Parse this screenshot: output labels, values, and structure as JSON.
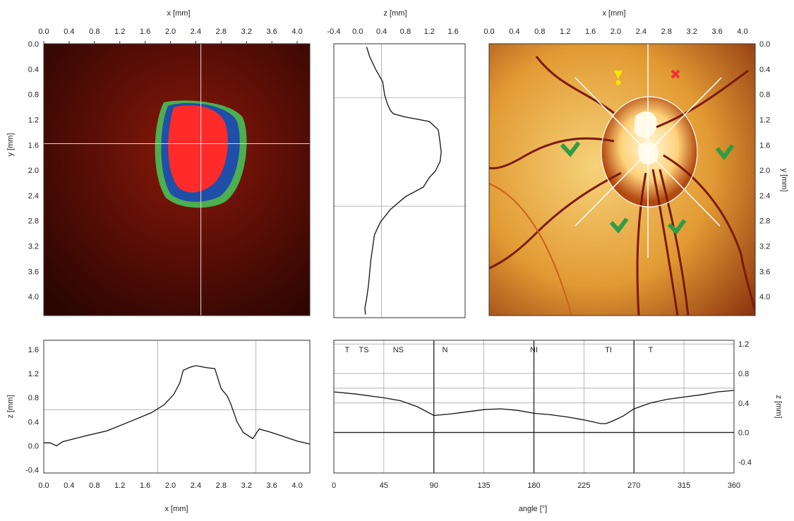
{
  "chart_data": [
    {
      "id": "topview",
      "type": "heatmap",
      "xlabel": "x [mm]",
      "ylabel": "y [mm]",
      "xticks": [
        "0.0",
        "0.4",
        "0.8",
        "1.2",
        "1.6",
        "2.0",
        "2.4",
        "2.8",
        "3.2",
        "3.6",
        "4.0"
      ],
      "yticks": [
        "0.0",
        "0.4",
        "0.8",
        "1.2",
        "1.6",
        "2.0",
        "2.4",
        "2.8",
        "3.2",
        "3.6",
        "4.0"
      ],
      "xlim": [
        0,
        4.2
      ],
      "ylim": [
        0,
        4.3
      ],
      "crosshair": {
        "x": 2.48,
        "y": 1.58
      },
      "regions": [
        {
          "name": "rim",
          "color": "#4caf50"
        },
        {
          "name": "transition",
          "color": "#1f4fa8"
        },
        {
          "name": "cup",
          "color": "#ff2a2a"
        }
      ],
      "background_color": "#6b1208"
    },
    {
      "id": "depth_vertical",
      "type": "line",
      "xlabel": "z [mm]",
      "xticks": [
        "-0.4",
        "0.0",
        "0.4",
        "0.8",
        "1.2",
        "1.6"
      ],
      "xlim": [
        -0.4,
        1.8
      ],
      "ylim": [
        0,
        4.3
      ],
      "hlines": [
        0.85,
        2.55
      ],
      "series": [
        {
          "x": [
            0.15,
            0.2,
            0.3,
            0.42,
            0.45,
            0.5,
            0.55,
            0.6,
            0.8,
            1.2,
            1.35,
            1.38,
            1.4,
            1.38,
            1.3,
            1.2,
            1.1,
            0.8,
            0.55,
            0.38,
            0.28,
            0.25,
            0.22,
            0.2,
            0.18,
            0.15,
            0.12,
            0.13
          ],
          "y": [
            0.05,
            0.2,
            0.4,
            0.6,
            0.8,
            0.95,
            1.05,
            1.1,
            1.15,
            1.22,
            1.35,
            1.55,
            1.7,
            1.85,
            2.0,
            2.1,
            2.25,
            2.4,
            2.6,
            2.8,
            3.0,
            3.2,
            3.4,
            3.6,
            3.8,
            4.0,
            4.15,
            4.25
          ]
        }
      ]
    },
    {
      "id": "fundus",
      "type": "heatmap",
      "xlabel": "x [mm]",
      "ylabel": "y [mm]",
      "xticks": [
        "0.0",
        "0.4",
        "0.8",
        "1.2",
        "1.6",
        "2.0",
        "2.4",
        "2.8",
        "3.2",
        "3.6",
        "4.0"
      ],
      "yticks": [
        "0.0",
        "0.4",
        "0.8",
        "1.2",
        "1.6",
        "2.0",
        "2.4",
        "2.8",
        "3.2",
        "3.6",
        "4.0"
      ],
      "xlim": [
        0,
        4.2
      ],
      "ylim": [
        0,
        4.3
      ],
      "colors": {
        "background": "#e8a23a",
        "vessel": "#7a1a08",
        "disc": "#fff3c8"
      }
    },
    {
      "id": "depth_horizontal",
      "type": "line",
      "xlabel": "x [mm]",
      "ylabel": "z [mm]",
      "xticks": [
        "0.0",
        "0.4",
        "0.8",
        "1.2",
        "1.6",
        "2.0",
        "2.4",
        "2.8",
        "3.2",
        "3.6",
        "4.0"
      ],
      "yticks": [
        "-0.4",
        "0.0",
        "0.4",
        "0.8",
        "1.2",
        "1.6"
      ],
      "xlim": [
        0,
        4.2
      ],
      "ylim": [
        1.75,
        -0.45
      ],
      "vlines": [
        1.8,
        3.35
      ],
      "series": [
        {
          "x": [
            0.0,
            0.1,
            0.2,
            0.3,
            0.6,
            1.0,
            1.4,
            1.7,
            1.9,
            2.05,
            2.15,
            2.2,
            2.3,
            2.4,
            2.55,
            2.7,
            2.8,
            2.9,
            2.95,
            3.05,
            3.15,
            3.3,
            3.4,
            3.6,
            3.8,
            4.0,
            4.2
          ],
          "y": [
            0.05,
            0.05,
            0.0,
            0.07,
            0.15,
            0.25,
            0.42,
            0.55,
            0.68,
            0.85,
            1.05,
            1.25,
            1.3,
            1.33,
            1.3,
            1.28,
            0.95,
            0.82,
            0.7,
            0.4,
            0.22,
            0.12,
            0.28,
            0.22,
            0.15,
            0.08,
            0.03
          ]
        }
      ]
    },
    {
      "id": "angular_profile",
      "type": "line",
      "xlabel": "angle [°]",
      "ylabel": "z [mm]",
      "xticks": [
        "0",
        "45",
        "90",
        "135",
        "180",
        "225",
        "270",
        "315",
        "360"
      ],
      "yticks": [
        "-0.4",
        "0.0",
        "0.4",
        "0.8",
        "1.2"
      ],
      "xlim": [
        0,
        360
      ],
      "ylim": [
        1.25,
        -0.55
      ],
      "vlines": [
        90,
        180,
        270
      ],
      "hlines": [
        0.0
      ],
      "sector_labels": [
        "T",
        "TS",
        "NS",
        "N",
        "NI",
        "TI",
        "T"
      ],
      "series": [
        {
          "x": [
            0,
            20,
            45,
            60,
            75,
            90,
            105,
            120,
            135,
            150,
            165,
            180,
            195,
            210,
            225,
            240,
            245,
            250,
            260,
            270,
            285,
            300,
            315,
            330,
            345,
            360
          ],
          "y": [
            0.55,
            0.52,
            0.47,
            0.43,
            0.35,
            0.23,
            0.25,
            0.28,
            0.31,
            0.32,
            0.3,
            0.26,
            0.24,
            0.21,
            0.17,
            0.12,
            0.12,
            0.15,
            0.22,
            0.32,
            0.4,
            0.45,
            0.48,
            0.51,
            0.55,
            0.57
          ]
        }
      ]
    }
  ]
}
